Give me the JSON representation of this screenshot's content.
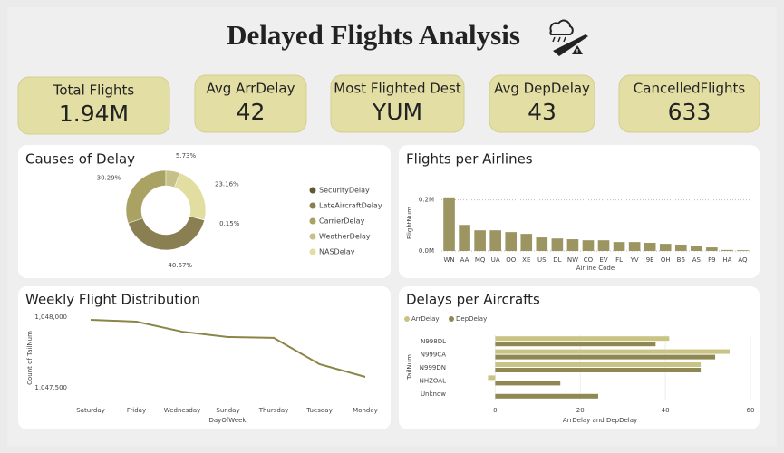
{
  "header": {
    "title": "Delayed Flights Analysis"
  },
  "kpis": [
    {
      "label": "Total Flights",
      "value": "1.94M"
    },
    {
      "label": "Avg ArrDelay",
      "value": 42
    },
    {
      "label": "Most Flighted Dest",
      "value": "YUM"
    },
    {
      "label": "Avg DepDelay",
      "value": 43
    },
    {
      "label": "CancelledFlights",
      "value": 633
    }
  ],
  "chart_data": [
    {
      "type": "donut",
      "title": "Causes of Delay",
      "categories": [
        "SecurityDelay",
        "LateAircraftDelay",
        "CarrierDelay",
        "WeatherDelay",
        "NASDelay"
      ],
      "values": [
        0.15,
        40.67,
        30.29,
        5.73,
        23.16
      ],
      "value_labels": [
        "0.15%",
        "40.67%",
        "30.29%",
        "5.73%",
        "23.16%"
      ],
      "colors": [
        "#5e5834",
        "#8a7f52",
        "#a9a262",
        "#c6c089",
        "#e2dea2"
      ]
    },
    {
      "type": "bar",
      "title": "Flights per Airlines",
      "x_label": "Airline Code",
      "y_label": "FlightNum",
      "categories": [
        "WN",
        "AA",
        "MQ",
        "UA",
        "OO",
        "XE",
        "US",
        "DL",
        "NW",
        "CO",
        "EV",
        "FL",
        "YV",
        "9E",
        "OH",
        "B6",
        "AS",
        "F9",
        "HA",
        "AQ"
      ],
      "values": [
        210000,
        102000,
        81000,
        81000,
        74000,
        67000,
        53000,
        49000,
        46000,
        42000,
        42000,
        35000,
        35000,
        32000,
        28000,
        25000,
        18000,
        14000,
        4000,
        3000
      ],
      "color": "#9c9562",
      "ylim": [
        0,
        220000
      ],
      "yticks": [
        {
          "value": 0,
          "label": "0.0M"
        },
        {
          "value": 200000,
          "label": "0.2M"
        }
      ],
      "grid": true
    },
    {
      "type": "line",
      "title": "Weekly Flight Distribution",
      "x_label": "DayOfWeek",
      "y_label": "Count of TailNum",
      "categories": [
        "Saturday",
        "Friday",
        "Wednesday",
        "Sunday",
        "Thursday",
        "Tuesday",
        "Monday"
      ],
      "values": [
        1047981,
        1047968,
        1047897,
        1047859,
        1047853,
        1047667,
        1047577
      ],
      "color": "#8c8546",
      "ylim": [
        1047500,
        1048000
      ],
      "yticks": [
        {
          "value": 1047500,
          "label": "1,047,500"
        },
        {
          "value": 1048000,
          "label": "1,048,000"
        }
      ]
    },
    {
      "type": "bar",
      "orientation": "horizontal",
      "title": "Delays per Aircrafts",
      "x_label": "ArrDelay and DepDelay",
      "y_label": "TailNum",
      "categories": [
        "N998DL",
        "N999CA",
        "N999DN",
        "NHZOAL",
        "Unknow"
      ],
      "series": [
        {
          "name": "ArrDelay",
          "color": "#c9c384",
          "values": [
            40.9,
            55.1,
            48.3,
            -1.7,
            null
          ]
        },
        {
          "name": "DepDelay",
          "color": "#8f8852",
          "values": [
            37.7,
            51.7,
            48.3,
            15.3,
            24.2
          ]
        }
      ],
      "xlim": [
        -2,
        60
      ],
      "xticks": [
        0,
        20,
        40,
        60
      ],
      "grid": true
    }
  ]
}
